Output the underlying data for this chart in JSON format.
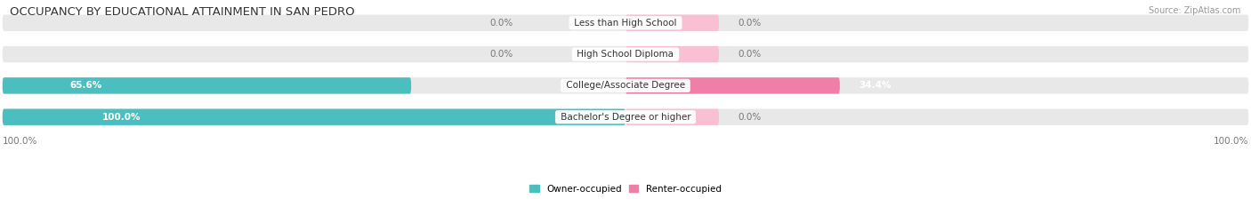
{
  "title": "OCCUPANCY BY EDUCATIONAL ATTAINMENT IN SAN PEDRO",
  "source": "Source: ZipAtlas.com",
  "categories": [
    "Less than High School",
    "High School Diploma",
    "College/Associate Degree",
    "Bachelor's Degree or higher"
  ],
  "owner_pct": [
    0.0,
    0.0,
    65.6,
    100.0
  ],
  "renter_pct": [
    0.0,
    0.0,
    34.4,
    0.0
  ],
  "owner_color": "#4bbfc0",
  "renter_color": "#f07fa8",
  "renter_light_color": "#f9c0d4",
  "bar_bg_color": "#e8e8e8",
  "figsize": [
    14.06,
    2.33
  ],
  "dpi": 100,
  "title_fontsize": 9.5,
  "label_fontsize": 7.5,
  "tick_fontsize": 7.5,
  "source_fontsize": 7
}
